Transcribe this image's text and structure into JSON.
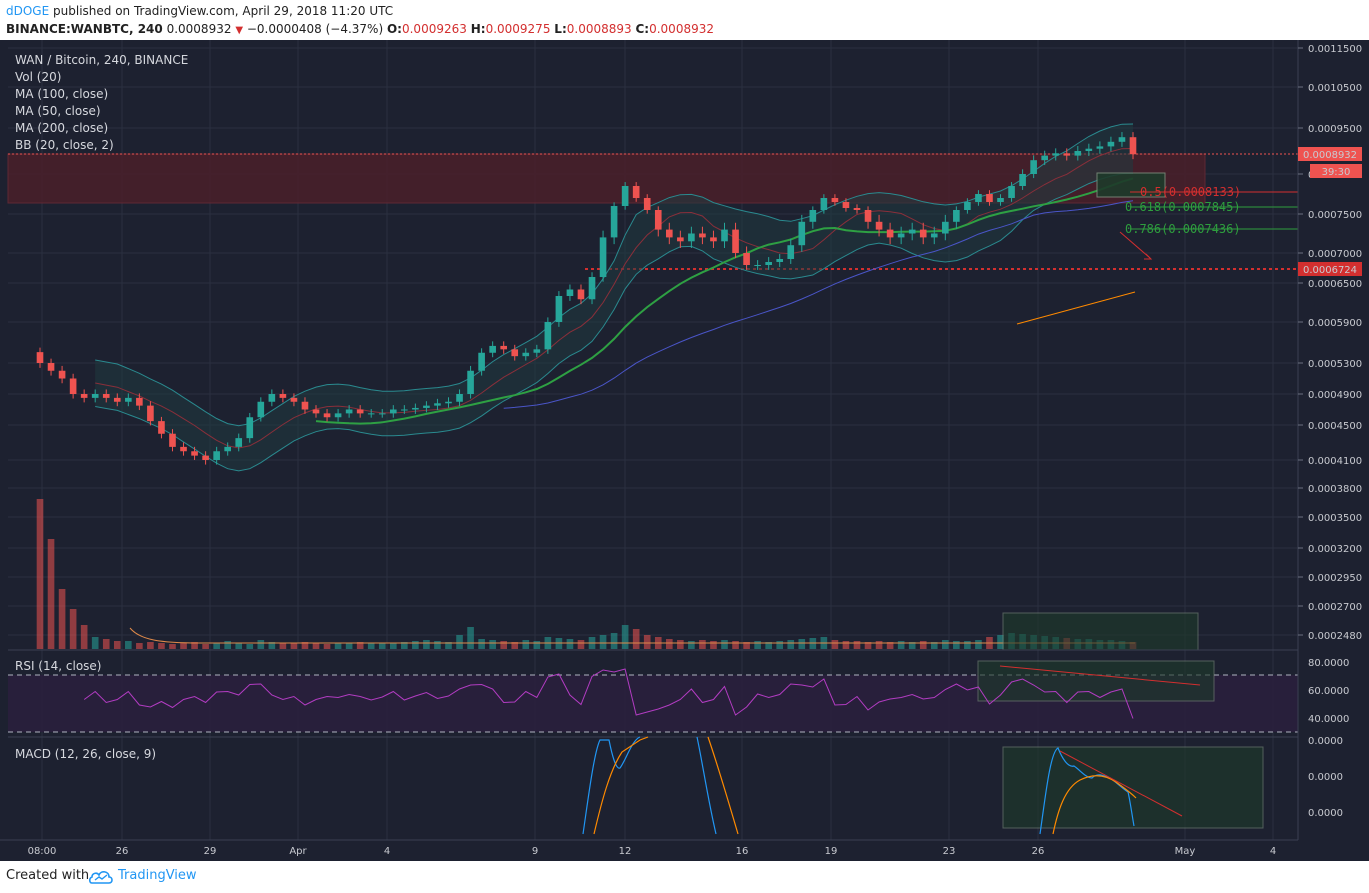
{
  "header": {
    "user": "dDOGE",
    "published_text": "published on TradingView.com, April 29, 2018 11:20 UTC",
    "symbol": "BINANCE:WANBTC, 240",
    "price": "0.0008932",
    "change": "−0.0000408 (−4.37%)",
    "o_label": "O:",
    "o": "0.0009263",
    "h_label": "H:",
    "h": "0.0009275",
    "l_label": "L:",
    "l": "0.0008893",
    "c_label": "C:",
    "c": "0.0008932"
  },
  "footer": {
    "created_with": "Created with",
    "brand": "TradingView"
  },
  "colors": {
    "bg": "#1d2130",
    "up": "#26a69a",
    "down": "#ef5350",
    "rsi": "#b23cc2",
    "macd": "#2196f3",
    "signal": "#ff8a00"
  },
  "chart_data": {
    "type": "candlestick",
    "title": "WAN / Bitcoin, 240, BINANCE",
    "indicators": [
      "Vol (20)",
      "MA (100, close)",
      "MA (50, close)",
      "MA (200, close)",
      "BB (20, close, 2)"
    ],
    "y_ticks": [
      "0.0011500",
      "0.0010500",
      "0.0009500",
      "0.0008500",
      "0.0007500",
      "0.0007000",
      "0.0006500",
      "0.0005900",
      "0.0005300",
      "0.0004900",
      "0.0004500",
      "0.0004100",
      "0.0003800",
      "0.0003500",
      "0.0003200",
      "0.0002950",
      "0.0002700",
      "0.0002480"
    ],
    "x_ticks": [
      "08:00",
      "26",
      "29",
      "Apr",
      "4",
      "9",
      "12",
      "16",
      "19",
      "23",
      "26",
      "May",
      "4"
    ],
    "price_tag": "0.0008932",
    "countdown": "39:30",
    "support_tag": "0.0006724",
    "fib_levels": [
      {
        "label": "0.5(0.0008133)",
        "color": "#d32f2f"
      },
      {
        "label": "0.618(0.0007845)",
        "color": "#2e9e3e"
      },
      {
        "label": "0.786(0.0007436)",
        "color": "#2e9e3e"
      }
    ],
    "close_values": [
      0.00053,
      0.00052,
      0.00051,
      0.00049,
      0.000485,
      0.00049,
      0.000485,
      0.00048,
      0.000485,
      0.000475,
      0.000455,
      0.00044,
      0.000425,
      0.00042,
      0.000415,
      0.00041,
      0.00042,
      0.000425,
      0.000435,
      0.00046,
      0.00048,
      0.00049,
      0.000485,
      0.00048,
      0.00047,
      0.000465,
      0.00046,
      0.000465,
      0.00047,
      0.000465,
      0.000465,
      0.000465,
      0.00047,
      0.00047,
      0.000472,
      0.000475,
      0.000478,
      0.00048,
      0.00049,
      0.00052,
      0.000545,
      0.000555,
      0.00055,
      0.00054,
      0.000545,
      0.00055,
      0.00059,
      0.00063,
      0.00064,
      0.000625,
      0.00066,
      0.00072,
      0.00077,
      0.00082,
      0.00079,
      0.00076,
      0.00073,
      0.00072,
      0.000715,
      0.000725,
      0.00072,
      0.000715,
      0.00073,
      0.0007,
      0.00068,
      0.00068,
      0.000685,
      0.00069,
      0.00071,
      0.00074,
      0.00076,
      0.00079,
      0.00078,
      0.000765,
      0.00076,
      0.00074,
      0.00073,
      0.00072,
      0.000725,
      0.00073,
      0.00072,
      0.000725,
      0.00074,
      0.00076,
      0.00078,
      0.0008,
      0.00078,
      0.00079,
      0.00082,
      0.00085,
      0.00088,
      0.00089,
      0.000895,
      0.00089,
      0.0009,
      0.000905,
      0.00091,
      0.00092,
      0.00093,
      0.000893
    ],
    "rsi": {
      "label": "RSI (14, close)",
      "ticks": [
        "80.0000",
        "60.0000",
        "40.0000"
      ]
    },
    "macd": {
      "label": "MACD (12, 26, close, 9)",
      "ticks": [
        "0.0000",
        "0.0000",
        "0.0000"
      ]
    }
  }
}
